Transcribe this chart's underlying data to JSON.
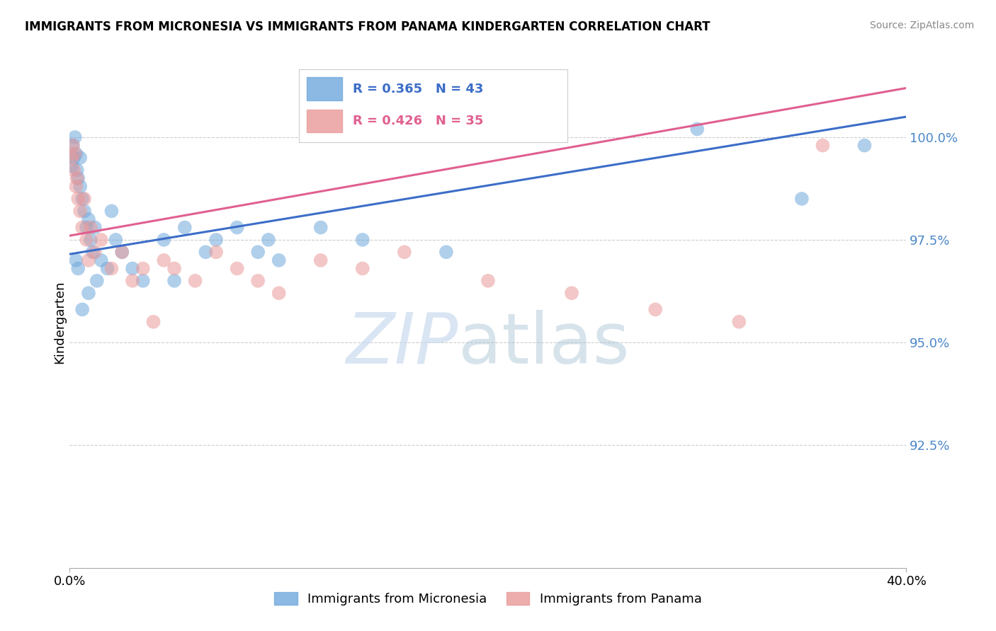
{
  "title": "IMMIGRANTS FROM MICRONESIA VS IMMIGRANTS FROM PANAMA KINDERGARTEN CORRELATION CHART",
  "source": "Source: ZipAtlas.com",
  "ylabel": "Kindergarten",
  "x_lim": [
    0.0,
    40.0
  ],
  "y_lim": [
    89.5,
    101.5
  ],
  "micronesia_R": 0.365,
  "micronesia_N": 43,
  "panama_R": 0.426,
  "panama_N": 35,
  "blue_color": "#6fa8dc",
  "pink_color": "#ea9999",
  "blue_line_color": "#3c6dc8",
  "pink_line_color": "#e06090",
  "scatter_alpha": 0.55,
  "micronesia_x": [
    0.1,
    0.15,
    0.2,
    0.25,
    0.3,
    0.35,
    0.4,
    0.5,
    0.5,
    0.6,
    0.7,
    0.8,
    0.9,
    1.0,
    1.1,
    1.2,
    1.5,
    1.8,
    2.0,
    2.2,
    2.5,
    3.0,
    3.5,
    4.5,
    5.0,
    5.5,
    6.5,
    7.0,
    8.0,
    9.0,
    9.5,
    10.0,
    12.0,
    14.0,
    18.0,
    30.0,
    35.0,
    38.0,
    0.3,
    0.4,
    0.6,
    0.9,
    1.3
  ],
  "micronesia_y": [
    99.3,
    99.8,
    99.5,
    100.0,
    99.6,
    99.2,
    99.0,
    99.5,
    98.8,
    98.5,
    98.2,
    97.8,
    98.0,
    97.5,
    97.2,
    97.8,
    97.0,
    96.8,
    98.2,
    97.5,
    97.2,
    96.8,
    96.5,
    97.5,
    96.5,
    97.8,
    97.2,
    97.5,
    97.8,
    97.2,
    97.5,
    97.0,
    97.8,
    97.5,
    97.2,
    100.2,
    98.5,
    99.8,
    97.0,
    96.8,
    95.8,
    96.2,
    96.5
  ],
  "panama_x": [
    0.1,
    0.15,
    0.2,
    0.25,
    0.3,
    0.35,
    0.4,
    0.5,
    0.6,
    0.7,
    0.8,
    0.9,
    1.0,
    1.2,
    1.5,
    2.0,
    2.5,
    3.0,
    3.5,
    4.0,
    4.5,
    5.0,
    6.0,
    7.0,
    8.0,
    9.0,
    10.0,
    12.0,
    14.0,
    16.0,
    20.0,
    24.0,
    28.0,
    32.0,
    36.0
  ],
  "panama_y": [
    99.5,
    99.8,
    99.2,
    99.6,
    98.8,
    99.0,
    98.5,
    98.2,
    97.8,
    98.5,
    97.5,
    97.0,
    97.8,
    97.2,
    97.5,
    96.8,
    97.2,
    96.5,
    96.8,
    95.5,
    97.0,
    96.8,
    96.5,
    97.2,
    96.8,
    96.5,
    96.2,
    97.0,
    96.8,
    97.2,
    96.5,
    96.2,
    95.8,
    95.5,
    99.8
  ],
  "legend_label_blue": "Immigrants from Micronesia",
  "legend_label_pink": "Immigrants from Panama",
  "background_color": "#ffffff",
  "grid_color": "#cccccc",
  "y_ticks": [
    92.5,
    95.0,
    97.5,
    100.0
  ],
  "y_tick_labels": [
    "92.5%",
    "95.0%",
    "97.5%",
    "100.0%"
  ],
  "watermark_zip": "ZIP",
  "watermark_atlas": "atlas"
}
